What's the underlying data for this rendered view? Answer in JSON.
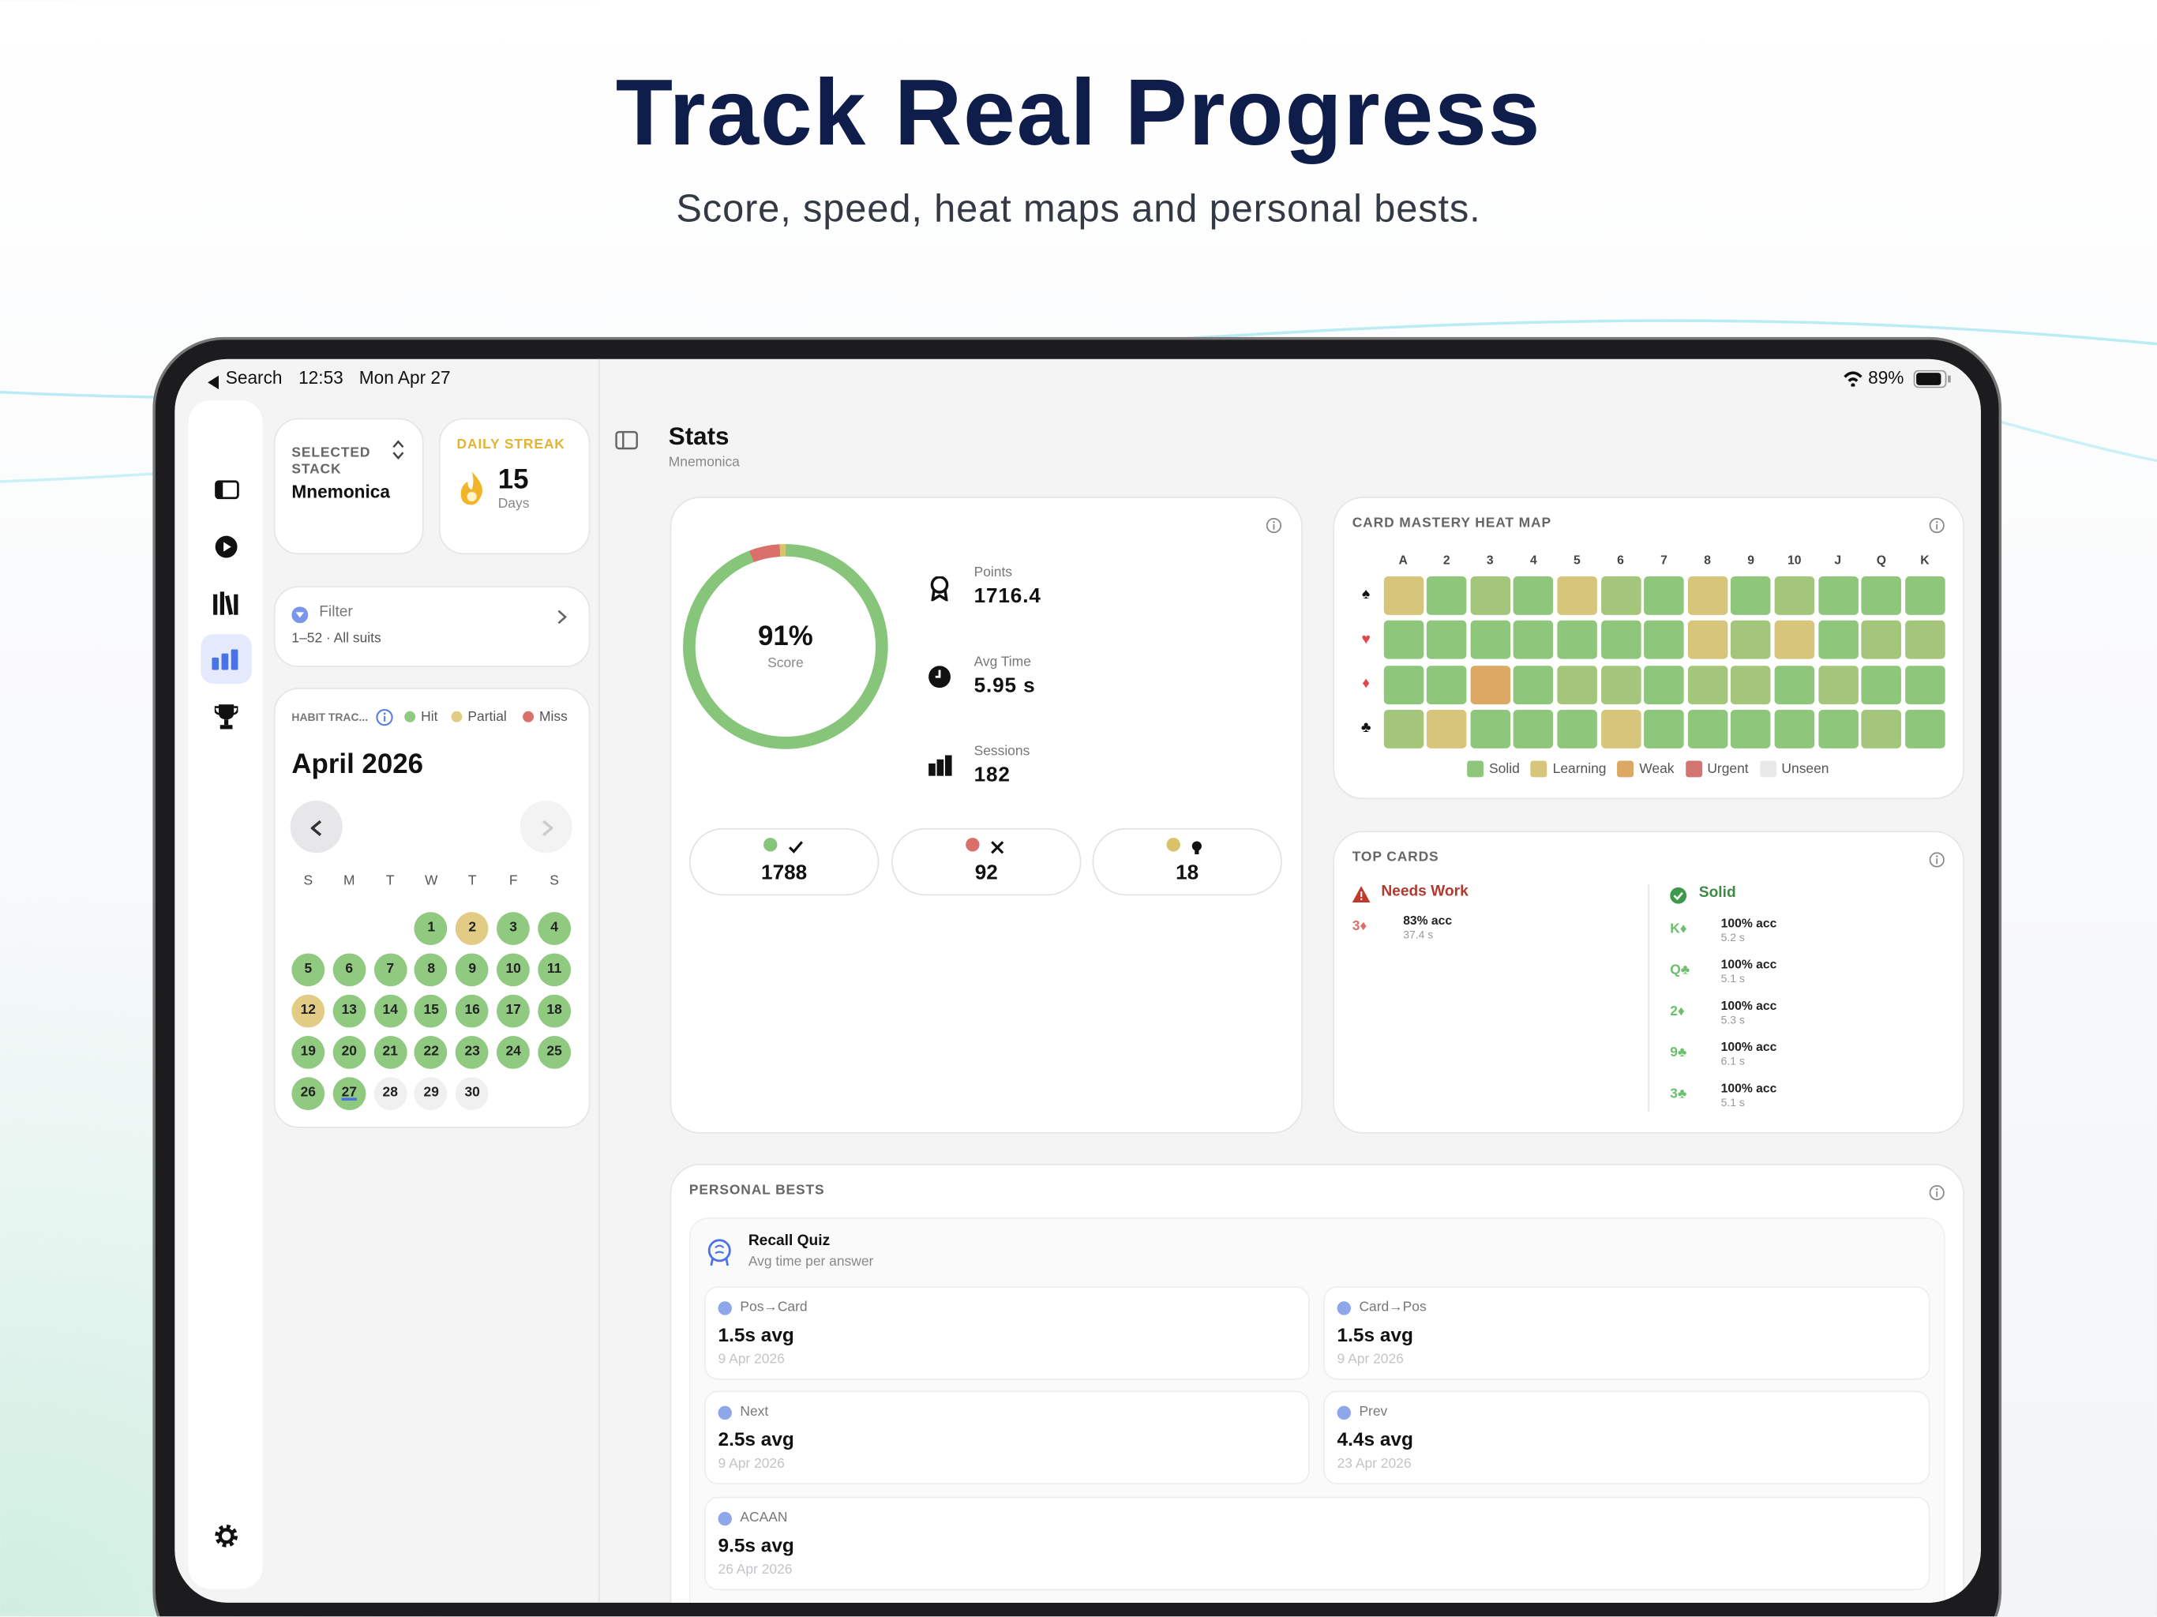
{
  "header": {
    "title": "Track Real Progress",
    "subtitle": "Score, speed, heat maps and personal bests."
  },
  "status_bar": {
    "back": "Search",
    "time": "12:53",
    "date": "Mon Apr 27",
    "battery": "89%"
  },
  "stack_card": {
    "label": "SELECTED STACK",
    "value": "Mnemonica"
  },
  "streak_card": {
    "label": "DAILY STREAK",
    "value": "15",
    "unit": "Days"
  },
  "filter_card": {
    "label": "Filter",
    "value": "1–52 · All suits"
  },
  "habit_tracker": {
    "label": "HABIT TRAC...",
    "legend": [
      {
        "name": "Hit",
        "color": "#8fca80"
      },
      {
        "name": "Partial",
        "color": "#e2cc85"
      },
      {
        "name": "Miss",
        "color": "#d9706b"
      }
    ],
    "month": "April 2026",
    "weekdays": [
      "S",
      "M",
      "T",
      "W",
      "T",
      "F",
      "S"
    ],
    "days": [
      {
        "day": "1",
        "state": "hit"
      },
      {
        "day": "2",
        "state": "partial"
      },
      {
        "day": "3",
        "state": "hit"
      },
      {
        "day": "4",
        "state": "hit"
      },
      {
        "day": "5",
        "state": "hit"
      },
      {
        "day": "6",
        "state": "hit"
      },
      {
        "day": "7",
        "state": "hit"
      },
      {
        "day": "8",
        "state": "hit"
      },
      {
        "day": "9",
        "state": "hit"
      },
      {
        "day": "10",
        "state": "hit"
      },
      {
        "day": "11",
        "state": "hit"
      },
      {
        "day": "12",
        "state": "partial"
      },
      {
        "day": "13",
        "state": "hit"
      },
      {
        "day": "14",
        "state": "hit"
      },
      {
        "day": "15",
        "state": "hit"
      },
      {
        "day": "16",
        "state": "hit"
      },
      {
        "day": "17",
        "state": "hit"
      },
      {
        "day": "18",
        "state": "hit"
      },
      {
        "day": "19",
        "state": "hit"
      },
      {
        "day": "20",
        "state": "hit"
      },
      {
        "day": "21",
        "state": "hit"
      },
      {
        "day": "22",
        "state": "hit"
      },
      {
        "day": "23",
        "state": "hit"
      },
      {
        "day": "24",
        "state": "hit"
      },
      {
        "day": "25",
        "state": "hit"
      },
      {
        "day": "26",
        "state": "hit"
      },
      {
        "day": "27",
        "state": "hit",
        "today": true
      },
      {
        "day": "28",
        "state": "none"
      },
      {
        "day": "29",
        "state": "none"
      },
      {
        "day": "30",
        "state": "none"
      }
    ]
  },
  "stats_header": {
    "title": "Stats",
    "subtitle": "Mnemonica"
  },
  "score": {
    "value": 91,
    "value_label": "91%",
    "label": "Score"
  },
  "metrics": [
    {
      "label": "Points",
      "value": "1716.4"
    },
    {
      "label": "Avg Time",
      "value": "5.95 s"
    },
    {
      "label": "Sessions",
      "value": "182"
    }
  ],
  "counts": [
    {
      "value": 1788,
      "color": "#86c57a"
    },
    {
      "value": 92,
      "color": "#d9706b"
    },
    {
      "value": 18,
      "color": "#d9c36a"
    }
  ],
  "chart_data": {
    "type": "heatmap",
    "title": "CARD MASTERY HEAT MAP",
    "columns": [
      "A",
      "2",
      "3",
      "4",
      "5",
      "6",
      "7",
      "8",
      "9",
      "10",
      "J",
      "Q",
      "K"
    ],
    "rows": [
      "♠",
      "♥",
      "♦",
      "♣"
    ],
    "row_colors": [
      "#111111",
      "#e04848",
      "#e04848",
      "#111111"
    ],
    "values": [
      [
        80,
        100,
        90,
        100,
        80,
        90,
        100,
        80,
        100,
        90,
        100,
        100,
        100
      ],
      [
        100,
        100,
        100,
        100,
        100,
        100,
        100,
        80,
        90,
        80,
        100,
        90,
        90
      ],
      [
        100,
        100,
        60,
        100,
        90,
        90,
        100,
        90,
        90,
        100,
        90,
        100,
        100
      ],
      [
        90,
        80,
        100,
        100,
        100,
        80,
        100,
        100,
        100,
        100,
        100,
        90,
        100
      ]
    ],
    "legend": [
      {
        "name": "Solid",
        "color": "#8ec77b"
      },
      {
        "name": "Learning",
        "color": "#d6c57a"
      },
      {
        "name": "Weak",
        "color": "#dba963"
      },
      {
        "name": "Urgent",
        "color": "#d47471"
      },
      {
        "name": "Unseen",
        "color": "#e9e9e9"
      }
    ]
  },
  "top_cards": {
    "title": "TOP CARDS",
    "needs_work": {
      "label": "Needs Work",
      "cards": [
        {
          "card": "3♦",
          "accuracy": "83% acc",
          "time": "37.4 s"
        }
      ]
    },
    "solid": {
      "label": "Solid",
      "cards": [
        {
          "card": "K♦",
          "accuracy": "100% acc",
          "time": "5.2 s"
        },
        {
          "card": "Q♣",
          "accuracy": "100% acc",
          "time": "5.1 s"
        },
        {
          "card": "2♦",
          "accuracy": "100% acc",
          "time": "5.3 s"
        },
        {
          "card": "9♣",
          "accuracy": "100% acc",
          "time": "6.1 s"
        },
        {
          "card": "3♣",
          "accuracy": "100% acc",
          "time": "5.1 s"
        }
      ]
    }
  },
  "personal_bests": {
    "title": "PERSONAL BESTS",
    "quiz": {
      "title": "Recall Quiz",
      "subtitle": "Avg time per answer"
    },
    "items": [
      {
        "label": "Pos→Card",
        "value": "1.5s avg",
        "date": "9 Apr 2026"
      },
      {
        "label": "Card→Pos",
        "value": "1.5s avg",
        "date": "9 Apr 2026"
      },
      {
        "label": "Next",
        "value": "2.5s avg",
        "date": "9 Apr 2026"
      },
      {
        "label": "Prev",
        "value": "4.4s avg",
        "date": "23 Apr 2026"
      },
      {
        "label": "ACAAN",
        "value": "9.5s avg",
        "date": "26 Apr 2026"
      }
    ]
  }
}
